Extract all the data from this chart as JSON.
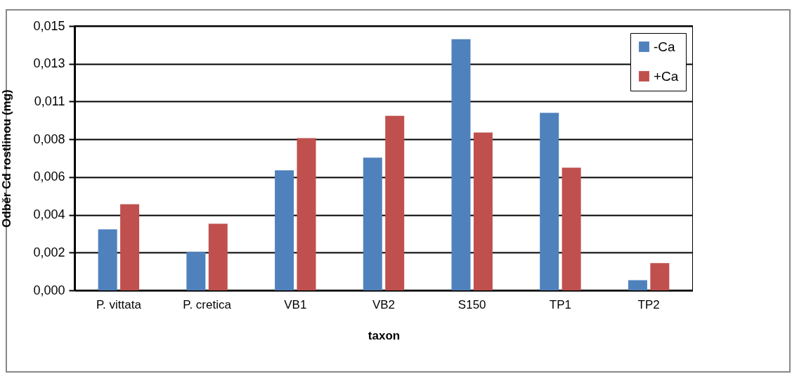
{
  "chart_data": {
    "type": "bar",
    "categories": [
      "P. vittata",
      "P. cretica",
      "VB1",
      "VB2",
      "S150",
      "TP1",
      "TP2"
    ],
    "series": [
      {
        "name": "-Ca",
        "color": "#4f81bd",
        "values": [
          0.00342,
          0.00216,
          0.00674,
          0.00745,
          0.0141,
          0.00997,
          0.00057
        ]
      },
      {
        "name": "+Ca",
        "color": "#c0504d",
        "values": [
          0.00483,
          0.00374,
          0.00854,
          0.0098,
          0.00886,
          0.00689,
          0.00153
        ]
      }
    ],
    "xlabel": "taxon",
    "ylabel": "Odběr Cd rostlinou (mg)",
    "ylim": [
      0,
      0.01484
    ],
    "yticks": [
      {
        "value": 0,
        "label": "0,000"
      },
      {
        "value": 0.00212,
        "label": "0,002"
      },
      {
        "value": 0.00424,
        "label": "0,004"
      },
      {
        "value": 0.00636,
        "label": "0,006"
      },
      {
        "value": 0.00848,
        "label": "0,008"
      },
      {
        "value": 0.0106,
        "label": "0,011"
      },
      {
        "value": 0.01272,
        "label": "0,013"
      },
      {
        "value": 0.01484,
        "label": "0,015"
      }
    ],
    "grid": true,
    "legend": "top right"
  }
}
